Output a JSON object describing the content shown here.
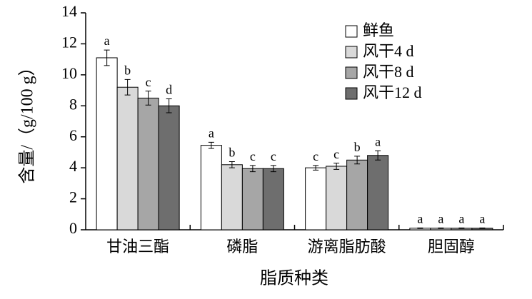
{
  "chart_data": {
    "type": "bar",
    "x_label": "脂质种类",
    "y_label": "含量/（g/100 g）",
    "categories": [
      "甘油三酯",
      "磷脂",
      "游离脂肪酸",
      "胆固醇"
    ],
    "series": [
      {
        "name": "鲜鱼",
        "color": "#ffffff",
        "values": [
          11.1,
          5.45,
          4.0,
          0.1
        ],
        "errors": [
          0.5,
          0.2,
          0.15,
          0.02
        ],
        "letters": [
          "a",
          "a",
          "c",
          "a"
        ]
      },
      {
        "name": "风干4 d",
        "color": "#d9d9d9",
        "values": [
          9.2,
          4.2,
          4.1,
          0.1
        ],
        "errors": [
          0.5,
          0.2,
          0.2,
          0.02
        ],
        "letters": [
          "b",
          "b",
          "c",
          "a"
        ]
      },
      {
        "name": "风干8 d",
        "color": "#a6a6a6",
        "values": [
          8.5,
          3.95,
          4.5,
          0.1
        ],
        "errors": [
          0.45,
          0.2,
          0.25,
          0.02
        ],
        "letters": [
          "c",
          "c",
          "b",
          "a"
        ]
      },
      {
        "name": "风干12 d",
        "color": "#6e6e6e",
        "values": [
          8.0,
          3.95,
          4.8,
          0.1
        ],
        "errors": [
          0.45,
          0.2,
          0.3,
          0.02
        ],
        "letters": [
          "d",
          "c",
          "a",
          "a"
        ]
      }
    ],
    "ylim": [
      0,
      14
    ],
    "yticks": [
      0,
      2,
      4,
      6,
      8,
      10,
      12,
      14
    ],
    "grid": false,
    "legend": "upper right"
  }
}
